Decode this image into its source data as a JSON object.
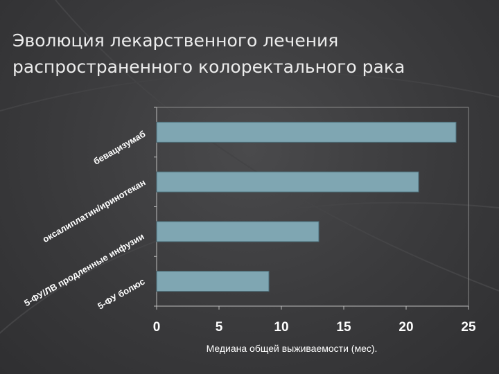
{
  "slide": {
    "title_line1": "Эволюция лекарственного лечения",
    "title_line2": "распространенного колоректального рака"
  },
  "colors": {
    "background": "#3a3a3c",
    "bar_fill": "#7fa6b2",
    "bar_stroke": "#4d6f7a",
    "text": "#ffffff"
  },
  "chart_data": {
    "type": "bar",
    "orientation": "horizontal",
    "categories": [
      "бевацизумаб",
      "оксалиплатин/иринотекан",
      "5-ФУ/ЛВ продленные инфузии",
      "5-ФУ болюс"
    ],
    "category_label_rows": [
      [
        "бевацизумаб"
      ],
      [
        "оксалиплатин/иринотекан"
      ],
      [
        "5-ФУ/ЛВ продленные инфузии"
      ],
      [
        "5-ФУ болюс"
      ]
    ],
    "values": [
      24,
      21,
      13,
      9
    ],
    "xlabel": "Медиана общей выживаемости (мес).",
    "ylabel": "",
    "xlim": [
      0,
      25
    ],
    "xticks": [
      0,
      5,
      10,
      15,
      20,
      25
    ],
    "tick_labels": [
      "0",
      "5",
      "10",
      "15",
      "20",
      "25"
    ],
    "grid": true,
    "legend": "none"
  }
}
